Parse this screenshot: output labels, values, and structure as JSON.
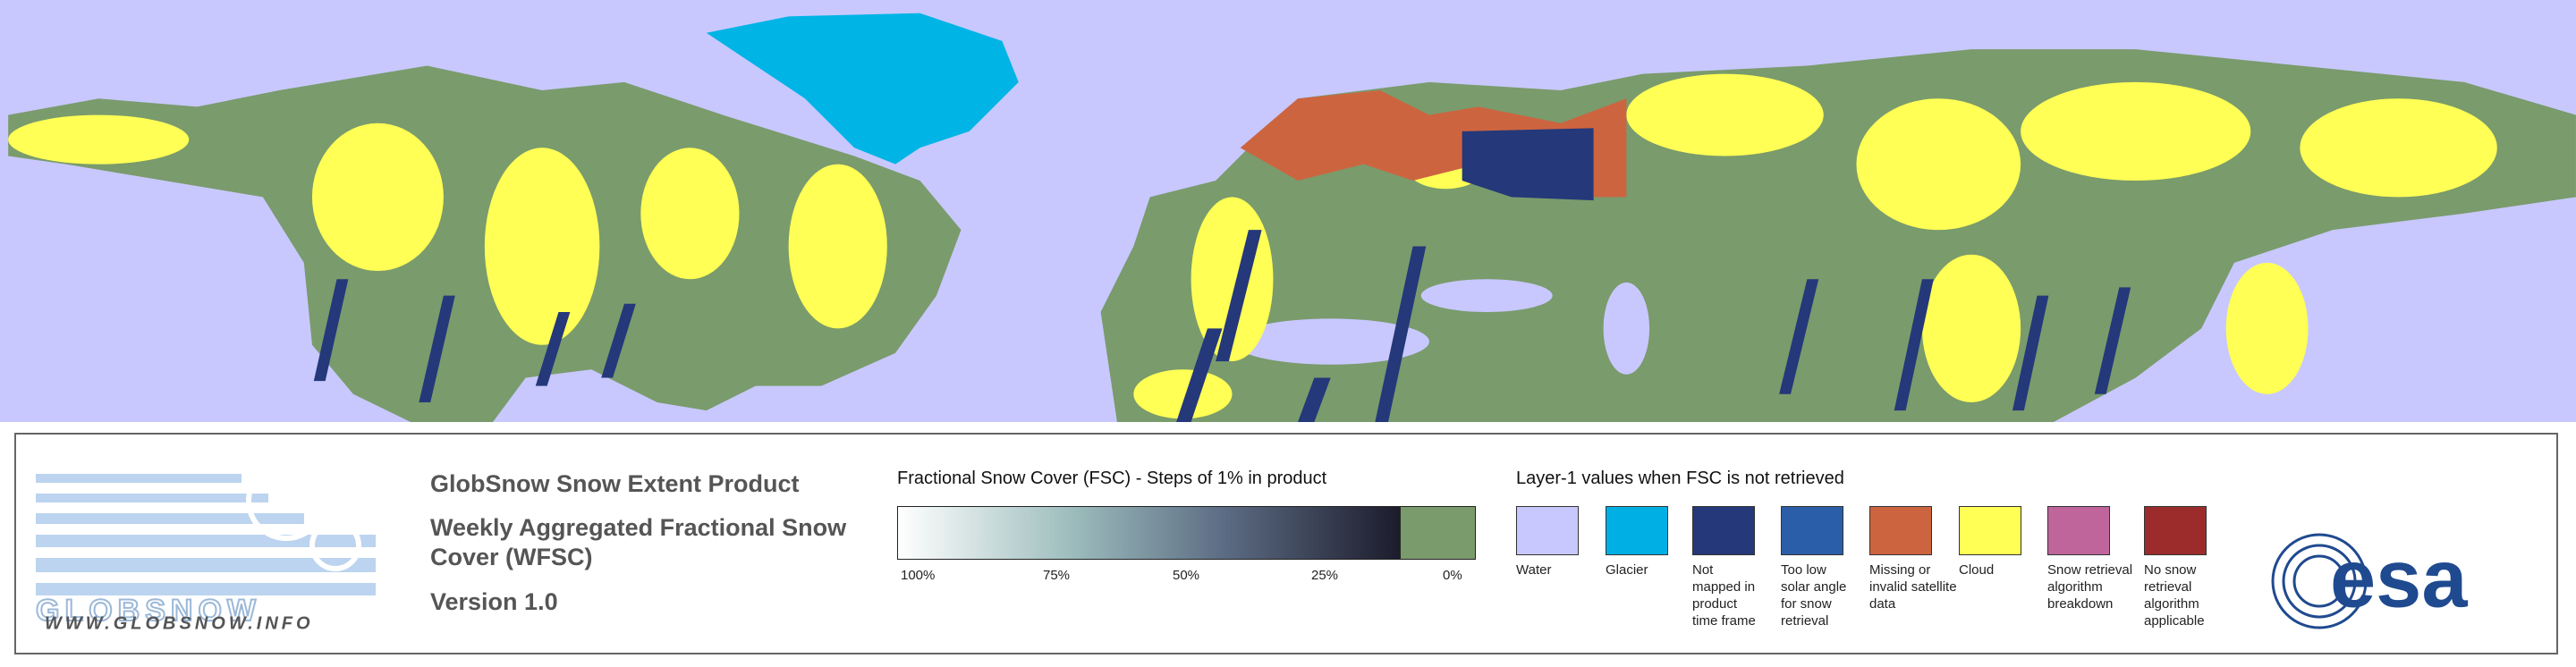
{
  "logo": {
    "name": "GLOBSNOW",
    "url": "WWW.GLOBSNOW.INFO"
  },
  "product": {
    "title": "GlobSnow Snow Extent Product",
    "subtitle_lines": [
      "Weekly Aggregated Fractional Snow",
      "Cover (WFSC)"
    ],
    "version": "Version 1.0"
  },
  "fsc_scale": {
    "title": "Fractional Snow Cover (FSC) - Steps of 1% in product",
    "labels": [
      "100%",
      "75%",
      "50%",
      "25%",
      "0%"
    ]
  },
  "layer1": {
    "title": "Layer-1 values when FSC is not retrieved",
    "items": [
      {
        "color": "#c8c8ff",
        "label": [
          "Water"
        ]
      },
      {
        "color": "#00b0e4",
        "label": [
          "Glacier"
        ]
      },
      {
        "color": "#24387a",
        "label": [
          "Not",
          "mapped in",
          "product",
          "time frame"
        ]
      },
      {
        "color": "#2a5ea8",
        "label": [
          "Too low",
          "solar angle",
          "for snow",
          "retrieval"
        ]
      },
      {
        "color": "#cd6440",
        "label": [
          "Missing or",
          "invalid satellite",
          "data"
        ]
      },
      {
        "color": "#ffff55",
        "label": [
          "Cloud"
        ]
      },
      {
        "color": "#c0649c",
        "label": [
          "Snow retrieval",
          "algorithm",
          "breakdown"
        ]
      },
      {
        "color": "#9c2c2c",
        "label": [
          "No snow",
          "retrieval",
          "algorithm",
          "applicable"
        ]
      }
    ]
  },
  "agency": {
    "name": "esa"
  }
}
